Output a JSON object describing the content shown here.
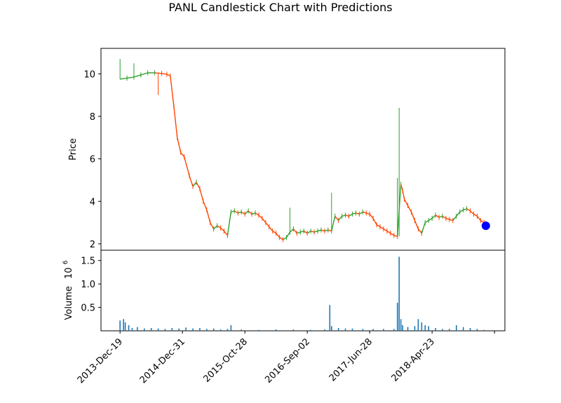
{
  "chart_data": {
    "type": "candlestick",
    "title": "PANL Candlestick Chart with Predictions",
    "price_panel": {
      "ylabel": "Price",
      "ylim": [
        1.7,
        11.2
      ],
      "yticks": [
        "2",
        "4",
        "6",
        "8",
        "10"
      ],
      "ytick_values": [
        2,
        4,
        6,
        8,
        10
      ],
      "series": [
        {
          "name": "close",
          "points": [
            [
              0,
              9.75
            ],
            [
              4,
              9.8
            ],
            [
              8,
              9.85
            ],
            [
              12,
              9.95
            ],
            [
              16,
              10.05
            ],
            [
              20,
              10.05
            ],
            [
              24,
              10.02
            ],
            [
              27,
              9.98
            ],
            [
              29,
              9.9
            ],
            [
              31,
              8.5
            ],
            [
              33,
              7.0
            ],
            [
              35,
              6.3
            ],
            [
              37,
              6.1
            ],
            [
              40,
              5.2
            ],
            [
              42,
              4.7
            ],
            [
              44,
              4.9
            ],
            [
              46,
              4.6
            ],
            [
              48,
              4.0
            ],
            [
              50,
              3.6
            ],
            [
              52,
              3.0
            ],
            [
              54,
              2.7
            ],
            [
              56,
              2.85
            ],
            [
              58,
              2.75
            ],
            [
              60,
              2.6
            ],
            [
              62,
              2.4
            ],
            [
              64,
              3.5
            ],
            [
              66,
              3.55
            ],
            [
              68,
              3.45
            ],
            [
              70,
              3.5
            ],
            [
              72,
              3.4
            ],
            [
              74,
              3.55
            ],
            [
              76,
              3.4
            ],
            [
              78,
              3.45
            ],
            [
              80,
              3.35
            ],
            [
              82,
              3.2
            ],
            [
              84,
              3.0
            ],
            [
              86,
              2.8
            ],
            [
              88,
              2.6
            ],
            [
              90,
              2.5
            ],
            [
              92,
              2.3
            ],
            [
              94,
              2.2
            ],
            [
              96,
              2.3
            ],
            [
              98,
              2.55
            ],
            [
              100,
              2.7
            ],
            [
              102,
              2.5
            ],
            [
              104,
              2.55
            ],
            [
              106,
              2.6
            ],
            [
              108,
              2.5
            ],
            [
              110,
              2.6
            ],
            [
              112,
              2.55
            ],
            [
              114,
              2.6
            ],
            [
              116,
              2.65
            ],
            [
              118,
              2.6
            ],
            [
              120,
              2.65
            ],
            [
              122,
              2.6
            ],
            [
              124,
              3.3
            ],
            [
              126,
              3.1
            ],
            [
              128,
              3.3
            ],
            [
              130,
              3.35
            ],
            [
              132,
              3.3
            ],
            [
              134,
              3.4
            ],
            [
              136,
              3.45
            ],
            [
              138,
              3.4
            ],
            [
              140,
              3.5
            ],
            [
              142,
              3.45
            ],
            [
              144,
              3.4
            ],
            [
              146,
              3.2
            ],
            [
              148,
              2.9
            ],
            [
              150,
              2.8
            ],
            [
              152,
              2.7
            ],
            [
              154,
              2.6
            ],
            [
              156,
              2.5
            ],
            [
              158,
              2.4
            ],
            [
              160,
              2.35
            ],
            [
              162,
              4.8
            ],
            [
              163,
              4.5
            ],
            [
              164,
              4.1
            ],
            [
              166,
              3.8
            ],
            [
              168,
              3.5
            ],
            [
              170,
              3.1
            ],
            [
              172,
              2.7
            ],
            [
              174,
              2.5
            ],
            [
              176,
              3.0
            ],
            [
              178,
              3.1
            ],
            [
              180,
              3.2
            ],
            [
              182,
              3.35
            ],
            [
              184,
              3.25
            ],
            [
              186,
              3.3
            ],
            [
              188,
              3.2
            ],
            [
              190,
              3.15
            ],
            [
              192,
              3.1
            ],
            [
              194,
              3.3
            ],
            [
              196,
              3.5
            ],
            [
              198,
              3.6
            ],
            [
              200,
              3.65
            ],
            [
              202,
              3.55
            ],
            [
              204,
              3.4
            ],
            [
              206,
              3.3
            ],
            [
              208,
              3.1
            ],
            [
              210,
              3.0
            ],
            [
              211,
              2.95
            ]
          ]
        },
        {
          "name": "spikes",
          "points": [
            [
              0,
              10.7
            ],
            [
              8,
              10.5
            ],
            [
              22,
              9.0
            ],
            [
              98,
              3.7
            ],
            [
              122,
              4.4
            ],
            [
              161,
              8.4
            ],
            [
              160,
              5.1
            ]
          ]
        }
      ],
      "prediction": {
        "x": 211,
        "y": 2.85
      }
    },
    "volume_panel": {
      "ylabel": "Volume",
      "scale_label": "10",
      "scale_exponent": "6",
      "ylim": [
        0,
        1.72
      ],
      "yticks": [
        "0.5",
        "1.0",
        "1.5"
      ],
      "ytick_values": [
        0.5,
        1.0,
        1.5
      ],
      "bars": [
        [
          0,
          0.22
        ],
        [
          2,
          0.25
        ],
        [
          3,
          0.18
        ],
        [
          5,
          0.12
        ],
        [
          7,
          0.06
        ],
        [
          10,
          0.08
        ],
        [
          14,
          0.05
        ],
        [
          18,
          0.06
        ],
        [
          22,
          0.05
        ],
        [
          26,
          0.04
        ],
        [
          30,
          0.06
        ],
        [
          34,
          0.05
        ],
        [
          38,
          0.07
        ],
        [
          42,
          0.05
        ],
        [
          46,
          0.06
        ],
        [
          50,
          0.04
        ],
        [
          54,
          0.05
        ],
        [
          58,
          0.03
        ],
        [
          62,
          0.04
        ],
        [
          64,
          0.12
        ],
        [
          70,
          0.03
        ],
        [
          80,
          0.02
        ],
        [
          90,
          0.03
        ],
        [
          100,
          0.03
        ],
        [
          110,
          0.02
        ],
        [
          118,
          0.03
        ],
        [
          121,
          0.55
        ],
        [
          122,
          0.1
        ],
        [
          126,
          0.06
        ],
        [
          130,
          0.05
        ],
        [
          134,
          0.05
        ],
        [
          140,
          0.04
        ],
        [
          146,
          0.04
        ],
        [
          152,
          0.04
        ],
        [
          158,
          0.04
        ],
        [
          160,
          0.6
        ],
        [
          161,
          1.58
        ],
        [
          162,
          0.25
        ],
        [
          163,
          0.12
        ],
        [
          166,
          0.08
        ],
        [
          170,
          0.1
        ],
        [
          172,
          0.25
        ],
        [
          174,
          0.18
        ],
        [
          176,
          0.12
        ],
        [
          178,
          0.1
        ],
        [
          182,
          0.06
        ],
        [
          186,
          0.04
        ],
        [
          190,
          0.04
        ],
        [
          194,
          0.12
        ],
        [
          198,
          0.08
        ],
        [
          202,
          0.06
        ],
        [
          206,
          0.04
        ],
        [
          210,
          0.02
        ]
      ]
    },
    "xticks": [
      {
        "x": 0,
        "label": "2013-Dec-19"
      },
      {
        "x": 36,
        "label": "2014-Dec-31"
      },
      {
        "x": 72,
        "label": "2015-Oct-28"
      },
      {
        "x": 108,
        "label": "2016-Sep-02"
      },
      {
        "x": 144,
        "label": "2017-Jun-28"
      },
      {
        "x": 180,
        "label": "2018-Apr-23"
      },
      {
        "x": 216,
        "label": ""
      }
    ],
    "xlim": [
      -11,
      222
    ],
    "colors": {
      "up": "#2ca02c",
      "down": "#ff4500",
      "volume": "#1f77b4",
      "prediction": "#0000ff"
    }
  }
}
